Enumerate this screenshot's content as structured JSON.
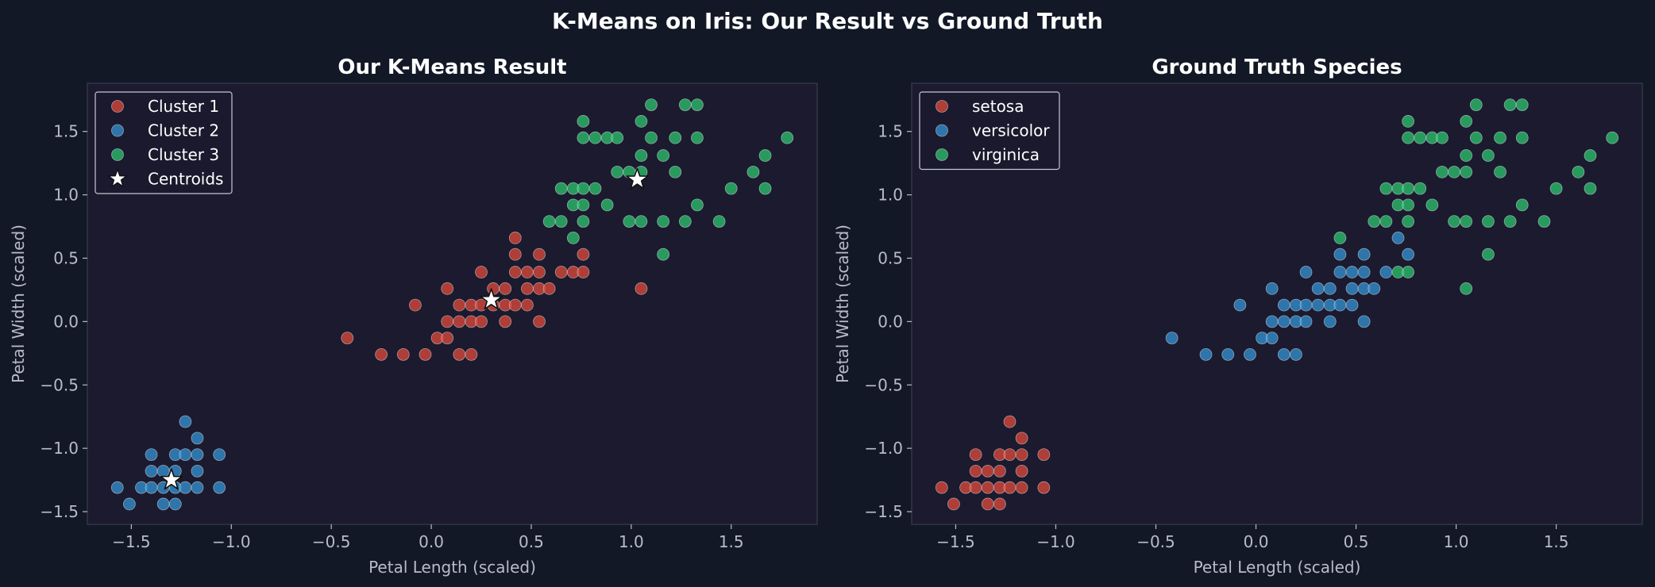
{
  "figure": {
    "title": "K-Means on Iris: Our Result vs Ground Truth",
    "background": "#121826",
    "axes_background": "#1b1a2e"
  },
  "colors": {
    "red": "#e74c3c",
    "blue": "#3498db",
    "green": "#2ecc71",
    "centroid": "#ffffff"
  },
  "chart_data": [
    {
      "type": "scatter",
      "title": "Our K-Means Result",
      "xlabel": "Petal Length (scaled)",
      "ylabel": "Petal Width (scaled)",
      "xlim": [
        -1.72,
        1.93
      ],
      "ylim": [
        -1.6,
        1.88
      ],
      "xticks": [
        -1.5,
        -1.0,
        -0.5,
        0.0,
        0.5,
        1.0,
        1.5
      ],
      "yticks": [
        -1.5,
        -1.0,
        -0.5,
        0.0,
        0.5,
        1.0,
        1.5
      ],
      "xticklabels": [
        "−1.5",
        "−1.0",
        "−0.5",
        "0.0",
        "0.5",
        "1.0",
        "1.5"
      ],
      "yticklabels": [
        "−1.5",
        "−1.0",
        "−0.5",
        "0.0",
        "0.5",
        "1.0",
        "1.5"
      ],
      "grid": false,
      "legend_position": "top-left",
      "series": [
        {
          "name": "Cluster 1",
          "color": "#e74c3c",
          "points": [
            [
              -0.42,
              -0.13
            ],
            [
              -0.25,
              -0.26
            ],
            [
              -0.14,
              -0.26
            ],
            [
              -0.08,
              0.13
            ],
            [
              -0.03,
              -0.26
            ],
            [
              0.03,
              -0.13
            ],
            [
              0.08,
              -0.13
            ],
            [
              0.08,
              0.0
            ],
            [
              0.08,
              0.26
            ],
            [
              0.14,
              0.0
            ],
            [
              0.14,
              0.13
            ],
            [
              0.14,
              -0.26
            ],
            [
              0.2,
              0.0
            ],
            [
              0.2,
              0.13
            ],
            [
              0.2,
              -0.26
            ],
            [
              0.25,
              0.13
            ],
            [
              0.25,
              0.0
            ],
            [
              0.25,
              0.39
            ],
            [
              0.31,
              0.13
            ],
            [
              0.31,
              0.26
            ],
            [
              0.37,
              0.26
            ],
            [
              0.37,
              0.0
            ],
            [
              0.37,
              0.13
            ],
            [
              0.42,
              0.13
            ],
            [
              0.42,
              0.39
            ],
            [
              0.42,
              0.53
            ],
            [
              0.42,
              0.66
            ],
            [
              0.48,
              0.13
            ],
            [
              0.48,
              0.26
            ],
            [
              0.48,
              0.39
            ],
            [
              0.54,
              0.26
            ],
            [
              0.54,
              0.0
            ],
            [
              0.54,
              0.39
            ],
            [
              0.54,
              0.53
            ],
            [
              0.59,
              0.26
            ],
            [
              0.65,
              0.39
            ],
            [
              0.71,
              0.39
            ],
            [
              0.76,
              0.39
            ],
            [
              0.76,
              0.53
            ],
            [
              1.05,
              0.26
            ]
          ]
        },
        {
          "name": "Cluster 2",
          "color": "#3498db",
          "points": [
            [
              -1.57,
              -1.31
            ],
            [
              -1.51,
              -1.44
            ],
            [
              -1.45,
              -1.31
            ],
            [
              -1.4,
              -1.31
            ],
            [
              -1.4,
              -1.18
            ],
            [
              -1.4,
              -1.05
            ],
            [
              -1.34,
              -1.31
            ],
            [
              -1.34,
              -1.18
            ],
            [
              -1.34,
              -1.44
            ],
            [
              -1.28,
              -1.31
            ],
            [
              -1.28,
              -1.18
            ],
            [
              -1.28,
              -1.05
            ],
            [
              -1.28,
              -1.44
            ],
            [
              -1.23,
              -1.31
            ],
            [
              -1.23,
              -1.05
            ],
            [
              -1.23,
              -0.79
            ],
            [
              -1.17,
              -1.31
            ],
            [
              -1.17,
              -1.18
            ],
            [
              -1.17,
              -0.92
            ],
            [
              -1.17,
              -1.05
            ],
            [
              -1.06,
              -1.31
            ],
            [
              -1.06,
              -1.05
            ]
          ]
        },
        {
          "name": "Cluster 3",
          "color": "#2ecc71",
          "points": [
            [
              0.59,
              0.79
            ],
            [
              0.65,
              1.05
            ],
            [
              0.65,
              0.79
            ],
            [
              0.71,
              0.92
            ],
            [
              0.71,
              1.05
            ],
            [
              0.71,
              0.66
            ],
            [
              0.76,
              1.05
            ],
            [
              0.76,
              1.45
            ],
            [
              0.76,
              1.58
            ],
            [
              0.76,
              0.92
            ],
            [
              0.76,
              0.79
            ],
            [
              0.82,
              1.45
            ],
            [
              0.82,
              1.05
            ],
            [
              0.88,
              1.45
            ],
            [
              0.88,
              0.92
            ],
            [
              0.93,
              1.45
            ],
            [
              0.93,
              1.18
            ],
            [
              0.99,
              1.18
            ],
            [
              0.99,
              0.79
            ],
            [
              1.05,
              1.18
            ],
            [
              1.05,
              1.31
            ],
            [
              1.05,
              1.58
            ],
            [
              1.05,
              0.79
            ],
            [
              1.1,
              1.45
            ],
            [
              1.1,
              1.71
            ],
            [
              1.16,
              1.31
            ],
            [
              1.16,
              0.79
            ],
            [
              1.16,
              0.53
            ],
            [
              1.22,
              1.18
            ],
            [
              1.22,
              1.45
            ],
            [
              1.27,
              1.71
            ],
            [
              1.27,
              0.79
            ],
            [
              1.33,
              1.71
            ],
            [
              1.33,
              1.45
            ],
            [
              1.33,
              0.92
            ],
            [
              1.44,
              0.79
            ],
            [
              1.5,
              1.05
            ],
            [
              1.61,
              1.18
            ],
            [
              1.67,
              1.31
            ],
            [
              1.67,
              1.05
            ],
            [
              1.78,
              1.45
            ]
          ]
        }
      ],
      "centroids": {
        "name": "Centroids",
        "color": "#ffffff",
        "points": [
          [
            -1.3,
            -1.25
          ],
          [
            0.3,
            0.17
          ],
          [
            1.03,
            1.12
          ]
        ]
      }
    },
    {
      "type": "scatter",
      "title": "Ground Truth Species",
      "xlabel": "Petal Length (scaled)",
      "ylabel": "Petal Width (scaled)",
      "xlim": [
        -1.72,
        1.93
      ],
      "ylim": [
        -1.6,
        1.88
      ],
      "xticks": [
        -1.5,
        -1.0,
        -0.5,
        0.0,
        0.5,
        1.0,
        1.5
      ],
      "yticks": [
        -1.5,
        -1.0,
        -0.5,
        0.0,
        0.5,
        1.0,
        1.5
      ],
      "xticklabels": [
        "−1.5",
        "−1.0",
        "−0.5",
        "0.0",
        "0.5",
        "1.0",
        "1.5"
      ],
      "yticklabels": [
        "−1.5",
        "−1.0",
        "−0.5",
        "0.0",
        "0.5",
        "1.0",
        "1.5"
      ],
      "grid": false,
      "legend_position": "top-left",
      "series": [
        {
          "name": "setosa",
          "color": "#e74c3c",
          "points": [
            [
              -1.57,
              -1.31
            ],
            [
              -1.51,
              -1.44
            ],
            [
              -1.45,
              -1.31
            ],
            [
              -1.4,
              -1.31
            ],
            [
              -1.4,
              -1.18
            ],
            [
              -1.4,
              -1.05
            ],
            [
              -1.34,
              -1.31
            ],
            [
              -1.34,
              -1.18
            ],
            [
              -1.34,
              -1.44
            ],
            [
              -1.28,
              -1.31
            ],
            [
              -1.28,
              -1.18
            ],
            [
              -1.28,
              -1.05
            ],
            [
              -1.28,
              -1.44
            ],
            [
              -1.23,
              -1.31
            ],
            [
              -1.23,
              -1.05
            ],
            [
              -1.23,
              -0.79
            ],
            [
              -1.17,
              -1.31
            ],
            [
              -1.17,
              -1.18
            ],
            [
              -1.17,
              -0.92
            ],
            [
              -1.17,
              -1.05
            ],
            [
              -1.06,
              -1.31
            ],
            [
              -1.06,
              -1.05
            ]
          ]
        },
        {
          "name": "versicolor",
          "color": "#3498db",
          "points": [
            [
              -0.42,
              -0.13
            ],
            [
              -0.25,
              -0.26
            ],
            [
              -0.14,
              -0.26
            ],
            [
              -0.08,
              0.13
            ],
            [
              -0.03,
              -0.26
            ],
            [
              0.03,
              -0.13
            ],
            [
              0.08,
              -0.13
            ],
            [
              0.08,
              0.0
            ],
            [
              0.08,
              0.26
            ],
            [
              0.14,
              0.0
            ],
            [
              0.14,
              0.13
            ],
            [
              0.14,
              -0.26
            ],
            [
              0.2,
              0.0
            ],
            [
              0.2,
              0.13
            ],
            [
              0.2,
              -0.26
            ],
            [
              0.25,
              0.13
            ],
            [
              0.25,
              0.0
            ],
            [
              0.25,
              0.39
            ],
            [
              0.31,
              0.13
            ],
            [
              0.31,
              0.26
            ],
            [
              0.37,
              0.26
            ],
            [
              0.37,
              0.0
            ],
            [
              0.37,
              0.13
            ],
            [
              0.42,
              0.13
            ],
            [
              0.42,
              0.39
            ],
            [
              0.42,
              0.53
            ],
            [
              0.48,
              0.13
            ],
            [
              0.48,
              0.26
            ],
            [
              0.48,
              0.39
            ],
            [
              0.54,
              0.26
            ],
            [
              0.54,
              0.0
            ],
            [
              0.54,
              0.39
            ],
            [
              0.54,
              0.53
            ],
            [
              0.59,
              0.26
            ],
            [
              0.65,
              0.39
            ],
            [
              0.71,
              0.66
            ],
            [
              0.76,
              0.53
            ]
          ]
        },
        {
          "name": "virginica",
          "color": "#2ecc71",
          "points": [
            [
              0.42,
              0.66
            ],
            [
              0.59,
              0.79
            ],
            [
              0.65,
              1.05
            ],
            [
              0.65,
              0.79
            ],
            [
              0.71,
              0.92
            ],
            [
              0.71,
              1.05
            ],
            [
              0.71,
              0.39
            ],
            [
              0.76,
              1.05
            ],
            [
              0.76,
              1.45
            ],
            [
              0.76,
              1.58
            ],
            [
              0.76,
              0.92
            ],
            [
              0.76,
              0.79
            ],
            [
              0.76,
              0.39
            ],
            [
              0.82,
              1.45
            ],
            [
              0.82,
              1.05
            ],
            [
              0.88,
              1.45
            ],
            [
              0.88,
              0.92
            ],
            [
              0.93,
              1.45
            ],
            [
              0.93,
              1.18
            ],
            [
              0.99,
              1.18
            ],
            [
              0.99,
              0.79
            ],
            [
              1.05,
              1.18
            ],
            [
              1.05,
              1.31
            ],
            [
              1.05,
              1.58
            ],
            [
              1.05,
              0.79
            ],
            [
              1.05,
              0.26
            ],
            [
              1.1,
              1.45
            ],
            [
              1.1,
              1.71
            ],
            [
              1.16,
              1.31
            ],
            [
              1.16,
              0.79
            ],
            [
              1.16,
              0.53
            ],
            [
              1.22,
              1.18
            ],
            [
              1.22,
              1.45
            ],
            [
              1.27,
              1.71
            ],
            [
              1.27,
              0.79
            ],
            [
              1.33,
              1.71
            ],
            [
              1.33,
              1.45
            ],
            [
              1.33,
              0.92
            ],
            [
              1.44,
              0.79
            ],
            [
              1.5,
              1.05
            ],
            [
              1.61,
              1.18
            ],
            [
              1.67,
              1.31
            ],
            [
              1.67,
              1.05
            ],
            [
              1.78,
              1.45
            ]
          ]
        }
      ]
    }
  ]
}
